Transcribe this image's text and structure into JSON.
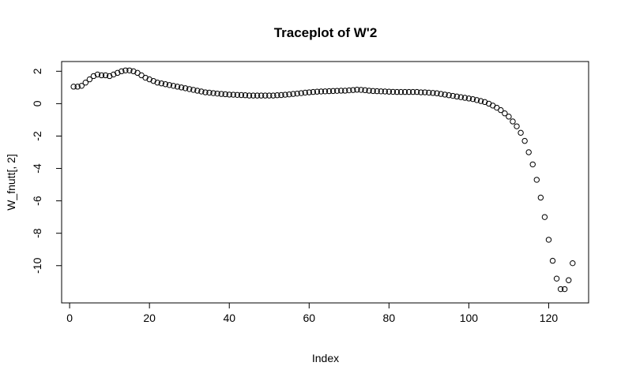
{
  "chart_data": {
    "type": "scatter",
    "title": "Traceplot of W'2",
    "xlabel": "Index",
    "ylabel": "W_fnutt[, 2]",
    "xlim": [
      -2,
      130
    ],
    "ylim": [
      -12.3,
      2.6
    ],
    "x_ticks": [
      0,
      20,
      40,
      60,
      80,
      100,
      120
    ],
    "y_ticks": [
      2,
      0,
      -2,
      -4,
      -6,
      -8,
      -10
    ],
    "x_tick_labels": [
      "0",
      "20",
      "40",
      "60",
      "80",
      "100",
      "120"
    ],
    "y_tick_labels": [
      "2",
      "0",
      "-2",
      "-4",
      "-6",
      "-8",
      "-10"
    ],
    "grid": false,
    "marker": "open-circle",
    "color": "#000000",
    "x_start": 1,
    "y": [
      1.05,
      1.05,
      1.1,
      1.3,
      1.5,
      1.7,
      1.8,
      1.75,
      1.75,
      1.7,
      1.8,
      1.9,
      2.0,
      2.05,
      2.05,
      2.0,
      1.9,
      1.75,
      1.6,
      1.5,
      1.4,
      1.3,
      1.25,
      1.2,
      1.15,
      1.1,
      1.05,
      1.0,
      0.95,
      0.9,
      0.85,
      0.8,
      0.75,
      0.7,
      0.68,
      0.65,
      0.62,
      0.6,
      0.58,
      0.56,
      0.55,
      0.54,
      0.53,
      0.52,
      0.5,
      0.5,
      0.5,
      0.5,
      0.5,
      0.5,
      0.5,
      0.52,
      0.53,
      0.55,
      0.57,
      0.6,
      0.62,
      0.65,
      0.68,
      0.7,
      0.72,
      0.74,
      0.75,
      0.76,
      0.77,
      0.78,
      0.79,
      0.8,
      0.8,
      0.82,
      0.84,
      0.86,
      0.85,
      0.83,
      0.8,
      0.78,
      0.77,
      0.76,
      0.75,
      0.74,
      0.73,
      0.72,
      0.72,
      0.72,
      0.72,
      0.72,
      0.72,
      0.7,
      0.7,
      0.68,
      0.66,
      0.64,
      0.6,
      0.56,
      0.52,
      0.48,
      0.44,
      0.4,
      0.36,
      0.32,
      0.28,
      0.22,
      0.16,
      0.1,
      0.0,
      -0.12,
      -0.25,
      -0.4,
      -0.6,
      -0.8,
      -1.1,
      -1.4,
      -1.8,
      -2.3,
      -3.0,
      -3.75,
      -4.7,
      -5.8,
      -7.0,
      -8.4,
      -9.7,
      -10.8,
      -11.45,
      -11.45,
      -10.9,
      -9.85
    ]
  }
}
